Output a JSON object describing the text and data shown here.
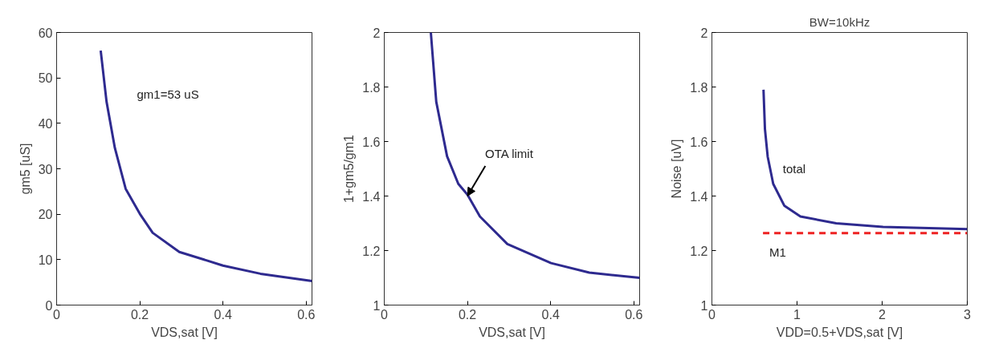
{
  "chart_data": [
    {
      "type": "line",
      "xlabel": "VDS,sat [V]",
      "ylabel": "gm5 [uS]",
      "annotations": [
        "gm1=53 uS"
      ],
      "xlim": [
        0,
        0.614
      ],
      "xticks": [
        0,
        0.2,
        0.4,
        0.6
      ],
      "ylim": [
        0,
        60
      ],
      "yticks": [
        0,
        10,
        20,
        30,
        40,
        50,
        60
      ],
      "grid": false,
      "series": [
        {
          "color": "#2e2a8f",
          "x": [
            0.106,
            0.12,
            0.14,
            0.166,
            0.2,
            0.231,
            0.295,
            0.4,
            0.49,
            0.614
          ],
          "values": [
            56.0,
            44.8,
            34.6,
            25.6,
            20.1,
            15.9,
            11.7,
            8.7,
            6.9,
            5.3
          ]
        }
      ]
    },
    {
      "type": "line",
      "xlabel": "VDS,sat [V]",
      "ylabel": "1+gm5/gm1",
      "annotations": [
        {
          "text": "OTA limit",
          "x": 0.2,
          "y": 1.4
        }
      ],
      "xlim": [
        0,
        0.614
      ],
      "xticks": [
        0,
        0.2,
        0.4,
        0.6
      ],
      "ylim": [
        1,
        2
      ],
      "yticks": [
        1,
        1.2,
        1.4,
        1.6,
        1.8,
        2
      ],
      "grid": false,
      "series": [
        {
          "color": "#2e2a8f",
          "x": [
            0.112,
            0.125,
            0.151,
            0.178,
            0.2,
            0.23,
            0.296,
            0.401,
            0.493,
            0.614
          ],
          "values": [
            2.0,
            1.746,
            1.546,
            1.445,
            1.405,
            1.325,
            1.224,
            1.154,
            1.119,
            1.1
          ]
        }
      ]
    },
    {
      "type": "line",
      "title": "BW=10kHz",
      "xlabel": "VDD=0.5+VDS,sat [V]",
      "ylabel": "Noise [uV]",
      "xlim": [
        0,
        3
      ],
      "xticks": [
        0,
        1,
        2,
        3
      ],
      "ylim": [
        1,
        2
      ],
      "yticks": [
        1,
        1.2,
        1.4,
        1.6,
        1.8,
        2
      ],
      "grid": false,
      "series": [
        {
          "name": "total",
          "color": "#2e2a8f",
          "line_style": "solid",
          "x": [
            0.606,
            0.623,
            0.655,
            0.72,
            0.85,
            1.04,
            1.46,
            2.01,
            3.0
          ],
          "values": [
            1.79,
            1.646,
            1.545,
            1.445,
            1.365,
            1.325,
            1.3,
            1.287,
            1.279
          ]
        },
        {
          "name": "M1",
          "color": "#ee2222",
          "line_style": "dashed",
          "x": [
            0.6,
            3.0
          ],
          "values": [
            1.264,
            1.264
          ]
        }
      ]
    }
  ]
}
